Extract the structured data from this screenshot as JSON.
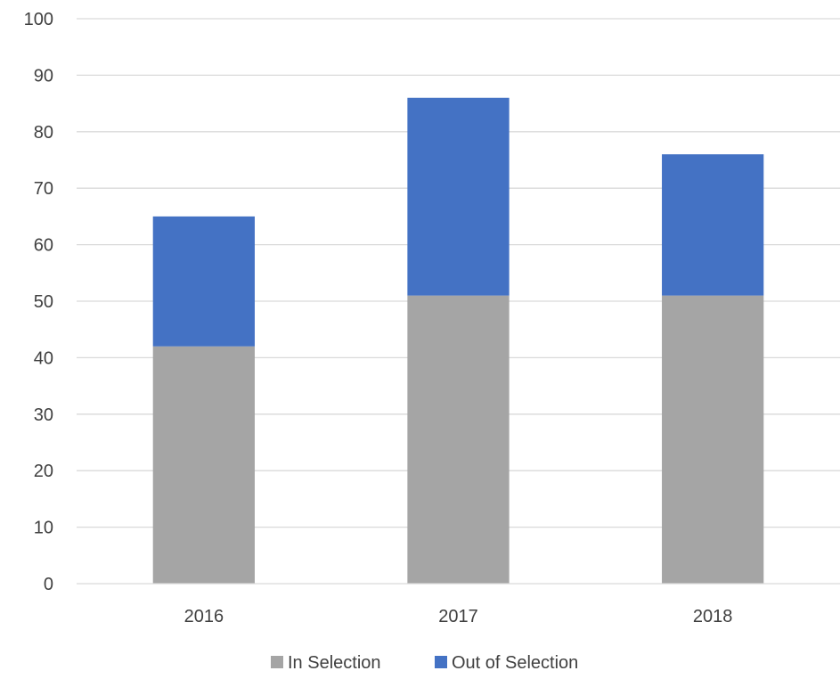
{
  "chart_data": {
    "type": "bar",
    "stacked": true,
    "title": "",
    "xlabel": "",
    "ylabel": "",
    "categories": [
      "2016",
      "2017",
      "2018"
    ],
    "series": [
      {
        "name": "In Selection",
        "color": "#a5a5a5",
        "values": [
          42,
          51,
          51
        ]
      },
      {
        "name": "Out of Selection",
        "color": "#4472c4",
        "values": [
          23,
          35,
          25
        ]
      }
    ],
    "ylim": [
      0,
      100
    ],
    "yticks": [
      "0",
      "10",
      "20",
      "30",
      "40",
      "50",
      "60",
      "70",
      "80",
      "90",
      "100"
    ],
    "grid": true,
    "legend": "bottom"
  }
}
